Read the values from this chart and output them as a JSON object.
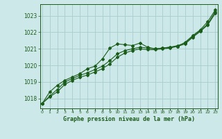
{
  "background_color": "#cde8e8",
  "grid_color": "#aacccc",
  "line_color": "#1a5c1a",
  "title": "Graphe pression niveau de la mer (hPa)",
  "ylabel_ticks": [
    1018,
    1019,
    1020,
    1021,
    1022,
    1023
  ],
  "xlim": [
    -0.3,
    23.3
  ],
  "ylim": [
    1017.4,
    1023.7
  ],
  "series1_x": [
    0,
    1,
    2,
    3,
    4,
    5,
    6,
    7,
    8,
    9,
    10,
    11,
    12,
    13,
    14,
    15,
    16,
    17,
    18,
    19,
    20,
    21,
    22,
    23
  ],
  "series1_y": [
    1017.7,
    1018.4,
    1018.8,
    1019.1,
    1019.3,
    1019.5,
    1019.8,
    1019.95,
    1020.4,
    1021.05,
    1021.3,
    1021.25,
    1021.2,
    1021.35,
    1021.1,
    1021.0,
    1021.05,
    1021.1,
    1021.15,
    1021.4,
    1021.8,
    1022.15,
    1022.65,
    1023.35
  ],
  "series2_x": [
    0,
    1,
    2,
    3,
    4,
    5,
    6,
    7,
    8,
    9,
    10,
    11,
    12,
    13,
    14,
    15,
    16,
    17,
    18,
    19,
    20,
    21,
    22,
    23
  ],
  "series2_y": [
    1017.7,
    1018.15,
    1018.55,
    1019.0,
    1019.2,
    1019.4,
    1019.55,
    1019.75,
    1019.95,
    1020.3,
    1020.7,
    1020.9,
    1021.0,
    1021.1,
    1021.05,
    1021.0,
    1021.05,
    1021.1,
    1021.2,
    1021.35,
    1021.75,
    1022.1,
    1022.5,
    1023.25
  ],
  "series3_x": [
    0,
    1,
    2,
    3,
    4,
    5,
    6,
    7,
    8,
    9,
    10,
    11,
    12,
    13,
    14,
    15,
    16,
    17,
    18,
    19,
    20,
    21,
    22,
    23
  ],
  "series3_y": [
    1017.7,
    1018.1,
    1018.4,
    1018.85,
    1019.1,
    1019.28,
    1019.42,
    1019.6,
    1019.8,
    1020.1,
    1020.5,
    1020.75,
    1020.9,
    1021.0,
    1020.95,
    1020.95,
    1021.0,
    1021.05,
    1021.15,
    1021.3,
    1021.7,
    1022.05,
    1022.45,
    1023.15
  ]
}
